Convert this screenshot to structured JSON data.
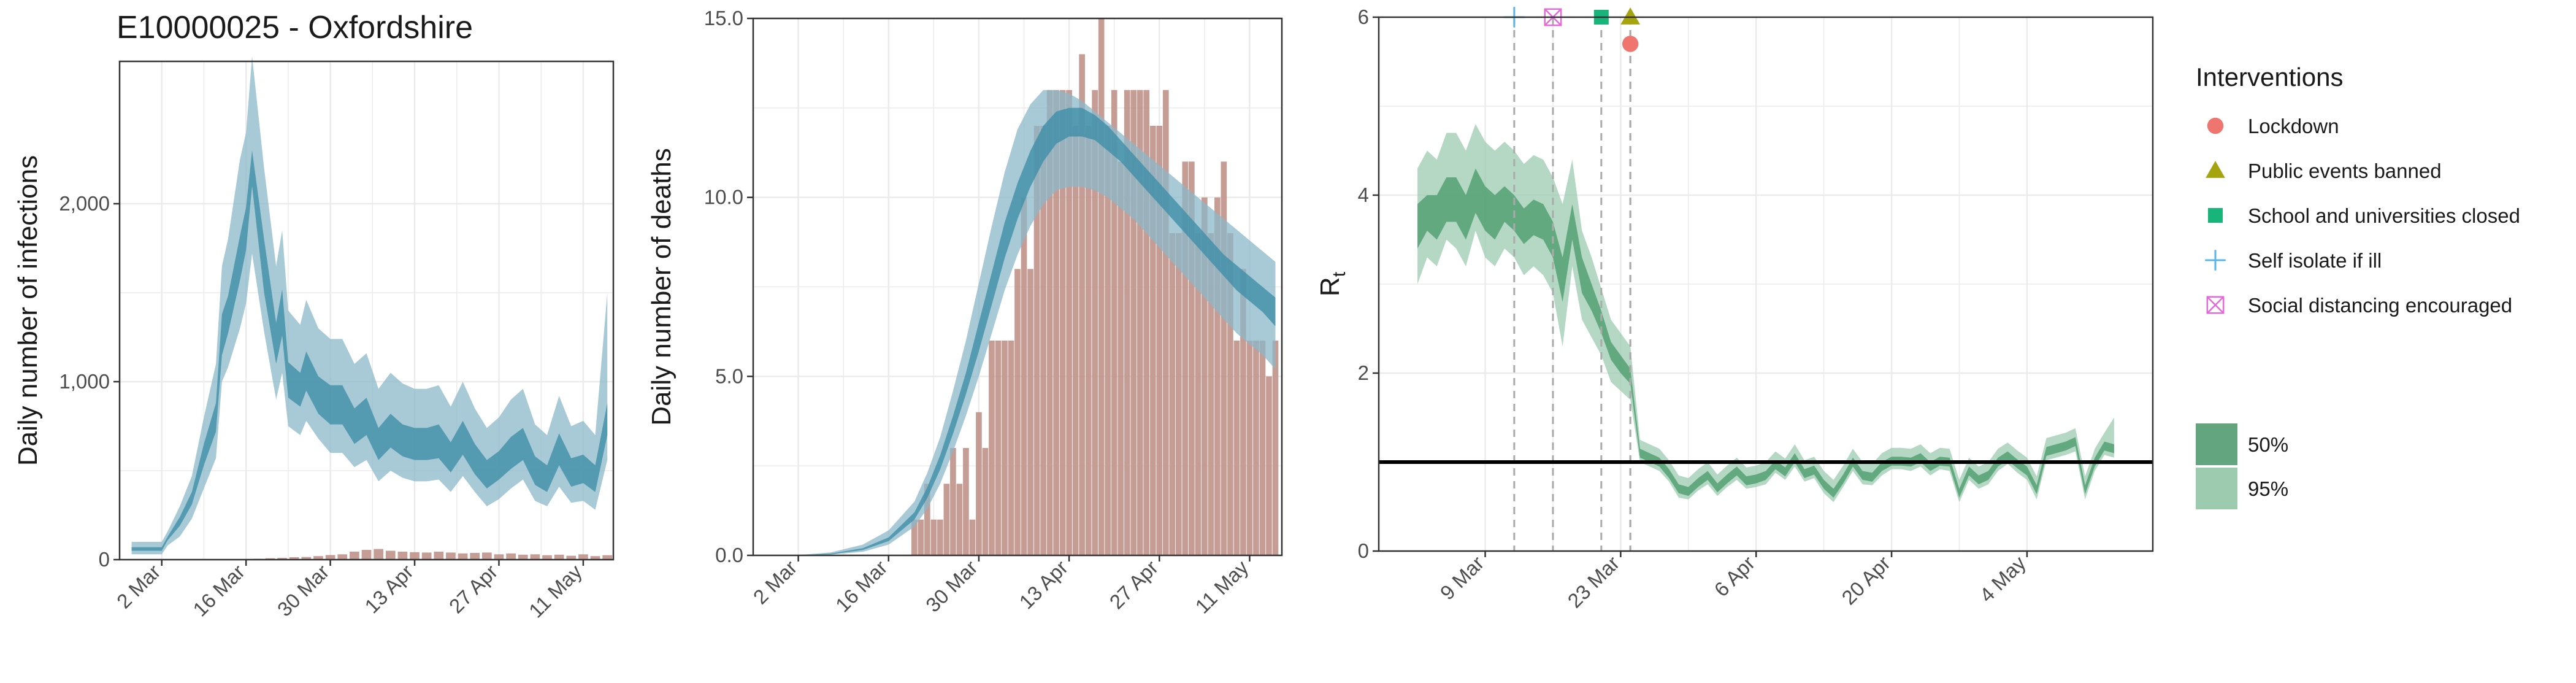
{
  "title": "E10000025 - Oxfordshire",
  "colors": {
    "infection_band95": "#8bb8c9",
    "infection_band50": "#3f8ea8",
    "bar": "#c0928a",
    "rt_band95": "#9bcbb0",
    "rt_band50": "#4e9d6e",
    "rt_line": "#000000",
    "grid": "#ebebeb"
  },
  "chart_data": [
    {
      "type": "area",
      "name": "infections",
      "ylabel": "Daily number of infections",
      "xlabel": "",
      "ylim": [
        0,
        2800
      ],
      "yticks": [
        0,
        1000,
        2000
      ],
      "ytick_labels": [
        "0",
        "1,000",
        "2,000"
      ],
      "xticks": [
        "2 Mar",
        "16 Mar",
        "30 Mar",
        "13 Apr",
        "27 Apr",
        "11 May"
      ],
      "x_days_of_ticks": [
        0,
        14,
        28,
        42,
        56,
        70
      ],
      "x_range_days": [
        -7,
        75
      ],
      "bands": {
        "x_days": [
          -5,
          0,
          1,
          3,
          5,
          7,
          9,
          10,
          11,
          13,
          14,
          15,
          17,
          19,
          20,
          21,
          23,
          24,
          26,
          28,
          30,
          32,
          34,
          36,
          38,
          40,
          42,
          44,
          46,
          48,
          50,
          52,
          54,
          56,
          58,
          60,
          62,
          64,
          66,
          68,
          70,
          72,
          74
        ],
        "q95_low": [
          30,
          30,
          80,
          130,
          230,
          400,
          570,
          1000,
          1080,
          1300,
          1440,
          1720,
          1280,
          900,
          1050,
          750,
          700,
          780,
          680,
          600,
          600,
          520,
          560,
          440,
          500,
          460,
          440,
          440,
          450,
          380,
          470,
          380,
          300,
          340,
          400,
          450,
          330,
          300,
          410,
          320,
          330,
          280,
          560
        ],
        "q50_low": [
          50,
          50,
          110,
          190,
          310,
          530,
          720,
          1150,
          1270,
          1570,
          1740,
          2100,
          1500,
          1100,
          1260,
          910,
          860,
          950,
          820,
          760,
          760,
          650,
          700,
          560,
          630,
          580,
          560,
          560,
          570,
          490,
          590,
          480,
          400,
          450,
          510,
          560,
          420,
          380,
          530,
          410,
          430,
          380,
          700
        ],
        "q50_high": [
          70,
          70,
          130,
          240,
          380,
          650,
          880,
          1380,
          1480,
          1820,
          1980,
          2300,
          1800,
          1330,
          1520,
          1110,
          1050,
          1170,
          1030,
          980,
          980,
          850,
          910,
          740,
          820,
          760,
          740,
          740,
          760,
          660,
          780,
          650,
          560,
          610,
          690,
          740,
          580,
          530,
          710,
          570,
          590,
          530,
          880
        ],
        "q95_high": [
          100,
          100,
          160,
          300,
          470,
          800,
          1100,
          1650,
          1800,
          2250,
          2400,
          2830,
          2200,
          1650,
          1850,
          1400,
          1320,
          1460,
          1300,
          1240,
          1240,
          1100,
          1160,
          960,
          1050,
          990,
          960,
          960,
          980,
          860,
          1000,
          850,
          740,
          800,
          900,
          960,
          760,
          700,
          920,
          750,
          780,
          700,
          1500
        ]
      },
      "bars": {
        "x_days": [
          16,
          18,
          20,
          22,
          24,
          26,
          28,
          30,
          32,
          34,
          36,
          38,
          40,
          42,
          44,
          46,
          48,
          50,
          52,
          54,
          56,
          58,
          60,
          62,
          64,
          66,
          68,
          70,
          72,
          74
        ],
        "values": [
          5,
          8,
          10,
          14,
          15,
          20,
          26,
          30,
          45,
          55,
          60,
          50,
          45,
          42,
          40,
          45,
          40,
          35,
          38,
          40,
          30,
          35,
          28,
          30,
          25,
          28,
          22,
          30,
          20,
          25
        ]
      }
    },
    {
      "type": "area",
      "name": "deaths",
      "ylabel": "Daily number of deaths",
      "xlabel": "",
      "ylim": [
        0,
        15
      ],
      "yticks": [
        0,
        5,
        10,
        15
      ],
      "ytick_labels": [
        "0.0",
        "5.0",
        "10.0",
        "15.0"
      ],
      "xticks": [
        "2 Mar",
        "16 Mar",
        "30 Mar",
        "13 Apr",
        "27 Apr",
        "11 May"
      ],
      "x_days_of_ticks": [
        0,
        14,
        28,
        42,
        56,
        70
      ],
      "x_range_days": [
        -7,
        75
      ],
      "bands": {
        "x_days": [
          -5,
          0,
          5,
          10,
          14,
          18,
          20,
          22,
          24,
          26,
          28,
          30,
          32,
          34,
          36,
          38,
          40,
          42,
          44,
          46,
          48,
          50,
          52,
          54,
          56,
          58,
          60,
          62,
          64,
          66,
          68,
          70,
          72,
          74
        ],
        "q95_low": [
          0,
          0,
          0.02,
          0.1,
          0.3,
          0.8,
          1.3,
          2.0,
          2.9,
          3.9,
          5.0,
          6.2,
          7.4,
          8.4,
          9.2,
          9.8,
          10.2,
          10.3,
          10.3,
          10.2,
          10.0,
          9.7,
          9.4,
          9.0,
          8.6,
          8.2,
          7.8,
          7.4,
          7.0,
          6.6,
          6.2,
          5.9,
          5.6,
          5.2
        ],
        "q50_low": [
          0,
          0,
          0.03,
          0.15,
          0.4,
          1.0,
          1.6,
          2.4,
          3.4,
          4.5,
          5.7,
          7.0,
          8.3,
          9.4,
          10.3,
          11.0,
          11.5,
          11.7,
          11.7,
          11.6,
          11.3,
          11.0,
          10.6,
          10.2,
          9.8,
          9.4,
          9.0,
          8.6,
          8.2,
          7.8,
          7.4,
          7.1,
          6.8,
          6.4
        ],
        "q50_high": [
          0,
          0,
          0.05,
          0.2,
          0.5,
          1.2,
          1.9,
          2.8,
          3.9,
          5.1,
          6.5,
          7.9,
          9.3,
          10.4,
          11.3,
          12.0,
          12.4,
          12.5,
          12.5,
          12.3,
          12.0,
          11.6,
          11.2,
          10.8,
          10.4,
          10.0,
          9.6,
          9.2,
          8.8,
          8.4,
          8.1,
          7.8,
          7.5,
          7.2
        ],
        "q95_high": [
          0,
          0.01,
          0.08,
          0.3,
          0.7,
          1.5,
          2.3,
          3.3,
          4.6,
          6.0,
          7.6,
          9.2,
          10.7,
          11.9,
          12.6,
          13.0,
          13.0,
          12.9,
          12.7,
          12.4,
          12.1,
          11.8,
          11.5,
          11.2,
          10.9,
          10.6,
          10.3,
          10.0,
          9.7,
          9.4,
          9.1,
          8.8,
          8.5,
          8.2
        ]
      },
      "bars": {
        "x_days": [
          18,
          19,
          20,
          21,
          22,
          23,
          24,
          25,
          26,
          27,
          28,
          29,
          30,
          31,
          32,
          33,
          34,
          35,
          36,
          37,
          38,
          39,
          40,
          41,
          42,
          43,
          44,
          45,
          46,
          47,
          48,
          49,
          50,
          51,
          52,
          53,
          54,
          55,
          56,
          57,
          58,
          59,
          60,
          61,
          62,
          63,
          64,
          65,
          66,
          67,
          68,
          69,
          70,
          71,
          72,
          73,
          74
        ],
        "values": [
          1,
          1,
          2,
          1,
          1,
          2,
          3,
          2,
          3,
          1,
          4,
          3,
          6,
          6,
          6,
          6,
          8,
          10,
          8,
          12,
          12,
          13,
          13,
          13,
          13,
          12,
          14,
          12,
          13,
          15,
          12,
          13,
          11,
          13,
          13,
          13,
          13,
          12,
          12,
          13,
          9,
          9,
          11,
          11,
          9,
          10,
          9,
          10,
          11,
          9,
          6,
          8,
          6,
          6,
          6,
          5,
          6
        ]
      }
    },
    {
      "type": "area",
      "name": "rt",
      "ylabel": "R",
      "ylabel_sub": "t",
      "xlabel": "",
      "ylim": [
        0,
        6
      ],
      "yticks": [
        0,
        2,
        4,
        6
      ],
      "ytick_labels": [
        "0",
        "2",
        "4",
        "6"
      ],
      "xticks": [
        "9 Mar",
        "23 Mar",
        "6 Apr",
        "20 Apr",
        "4 May"
      ],
      "x_days_of_ticks": [
        7,
        21,
        35,
        49,
        63
      ],
      "x_range_days": [
        -4,
        76
      ],
      "reference_line": 1,
      "bands": {
        "x_days": [
          0,
          1,
          2,
          3,
          4,
          5,
          6,
          7,
          8,
          9,
          10,
          11,
          12,
          13,
          14,
          15,
          16,
          17,
          18,
          19,
          20,
          21,
          22,
          23,
          24,
          25,
          26,
          27,
          28,
          29,
          30,
          31,
          32,
          33,
          34,
          35,
          36,
          37,
          38,
          39,
          40,
          41,
          42,
          43,
          44,
          45,
          46,
          47,
          48,
          49,
          50,
          51,
          52,
          53,
          54,
          55,
          56,
          57,
          58,
          59,
          60,
          61,
          62,
          63,
          64,
          65,
          66,
          67,
          68,
          69,
          70,
          71,
          72
        ],
        "q95_low": [
          3.0,
          3.3,
          3.2,
          3.5,
          3.4,
          3.2,
          3.6,
          3.3,
          3.2,
          3.4,
          3.3,
          3.1,
          3.2,
          3.1,
          2.9,
          2.3,
          3.2,
          2.6,
          2.4,
          2.2,
          1.9,
          1.8,
          1.7,
          1.0,
          0.95,
          0.9,
          0.78,
          0.6,
          0.58,
          0.68,
          0.75,
          0.62,
          0.72,
          0.8,
          0.7,
          0.72,
          0.75,
          0.88,
          0.8,
          0.95,
          0.78,
          0.82,
          0.65,
          0.55,
          0.72,
          0.9,
          0.75,
          0.74,
          0.85,
          0.92,
          0.92,
          0.9,
          0.95,
          0.85,
          0.92,
          0.9,
          0.55,
          0.8,
          0.7,
          0.75,
          0.9,
          0.98,
          0.88,
          0.8,
          0.58,
          1.02,
          1.05,
          1.08,
          1.12,
          0.58,
          0.9,
          1.08,
          1.05
        ],
        "q50_low": [
          3.4,
          3.6,
          3.5,
          3.7,
          3.7,
          3.5,
          3.8,
          3.6,
          3.5,
          3.7,
          3.6,
          3.45,
          3.55,
          3.5,
          3.3,
          2.8,
          3.5,
          2.9,
          2.7,
          2.45,
          2.15,
          2.0,
          1.88,
          1.05,
          1.0,
          0.95,
          0.82,
          0.65,
          0.62,
          0.72,
          0.8,
          0.66,
          0.76,
          0.85,
          0.74,
          0.76,
          0.8,
          0.92,
          0.84,
          1.0,
          0.82,
          0.86,
          0.7,
          0.6,
          0.76,
          0.95,
          0.8,
          0.78,
          0.9,
          0.96,
          0.96,
          0.95,
          1.0,
          0.9,
          0.96,
          0.95,
          0.6,
          0.85,
          0.75,
          0.8,
          0.95,
          1.02,
          0.93,
          0.85,
          0.64,
          1.07,
          1.1,
          1.13,
          1.18,
          0.64,
          0.95,
          1.13,
          1.1
        ],
        "q50_high": [
          3.9,
          4.0,
          4.0,
          4.2,
          4.2,
          4.0,
          4.3,
          4.1,
          4.0,
          4.1,
          4.0,
          3.85,
          3.95,
          3.9,
          3.7,
          3.3,
          3.9,
          3.3,
          3.0,
          2.7,
          2.35,
          2.2,
          2.05,
          1.15,
          1.1,
          1.05,
          0.92,
          0.75,
          0.72,
          0.82,
          0.9,
          0.76,
          0.86,
          0.95,
          0.84,
          0.86,
          0.9,
          1.02,
          0.94,
          1.1,
          0.92,
          0.96,
          0.8,
          0.7,
          0.86,
          1.05,
          0.9,
          0.88,
          1.0,
          1.06,
          1.06,
          1.05,
          1.1,
          1.0,
          1.06,
          1.05,
          0.7,
          0.95,
          0.85,
          0.9,
          1.05,
          1.12,
          1.03,
          0.95,
          0.74,
          1.17,
          1.2,
          1.23,
          1.28,
          0.74,
          1.05,
          1.23,
          1.2
        ],
        "q95_high": [
          4.3,
          4.5,
          4.4,
          4.7,
          4.7,
          4.5,
          4.8,
          4.6,
          4.5,
          4.6,
          4.5,
          4.35,
          4.45,
          4.4,
          4.2,
          3.9,
          4.4,
          3.6,
          3.3,
          2.95,
          2.6,
          2.45,
          2.3,
          1.25,
          1.2,
          1.15,
          1.02,
          0.85,
          0.82,
          0.92,
          1.0,
          0.86,
          0.96,
          1.05,
          0.94,
          0.96,
          1.0,
          1.12,
          1.04,
          1.2,
          1.02,
          1.06,
          0.9,
          0.8,
          0.96,
          1.15,
          1.0,
          0.98,
          1.1,
          1.16,
          1.16,
          1.15,
          1.2,
          1.1,
          1.16,
          1.15,
          0.8,
          1.05,
          0.95,
          1.0,
          1.15,
          1.22,
          1.13,
          1.05,
          0.84,
          1.27,
          1.3,
          1.33,
          1.38,
          0.84,
          1.15,
          1.33,
          1.5
        ]
      },
      "interventions": [
        {
          "name": "Self isolate if ill",
          "x_day": 10,
          "y": 6.0,
          "shape": "plus",
          "color": "#5ab4e6"
        },
        {
          "name": "Social distancing encouraged",
          "x_day": 14,
          "y": 6.0,
          "shape": "boxx",
          "color": "#e36ad8"
        },
        {
          "name": "School and universities closed",
          "x_day": 19,
          "y": 6.0,
          "shape": "square",
          "color": "#17b57a"
        },
        {
          "name": "Public events banned",
          "x_day": 22,
          "y": 6.0,
          "shape": "triangle",
          "color": "#a5a30e"
        },
        {
          "name": "Lockdown",
          "x_day": 22,
          "y": 5.7,
          "shape": "circle",
          "color": "#ef766f"
        }
      ],
      "tick_day_offset": 7
    }
  ],
  "legend": {
    "title": "Interventions",
    "items": [
      {
        "label": "Lockdown",
        "shape": "circle",
        "color": "#ef766f"
      },
      {
        "label": "Public events banned",
        "shape": "triangle",
        "color": "#a5a30e"
      },
      {
        "label": "School and universities closed",
        "shape": "square",
        "color": "#17b57a"
      },
      {
        "label": "Self isolate if ill",
        "shape": "plus",
        "color": "#5ab4e6"
      },
      {
        "label": "Social distancing encouraged",
        "shape": "boxx",
        "color": "#e36ad8"
      }
    ],
    "bands": [
      {
        "label": "50%",
        "color": "#62a57e"
      },
      {
        "label": "95%",
        "color": "#9dcbb0"
      }
    ]
  }
}
